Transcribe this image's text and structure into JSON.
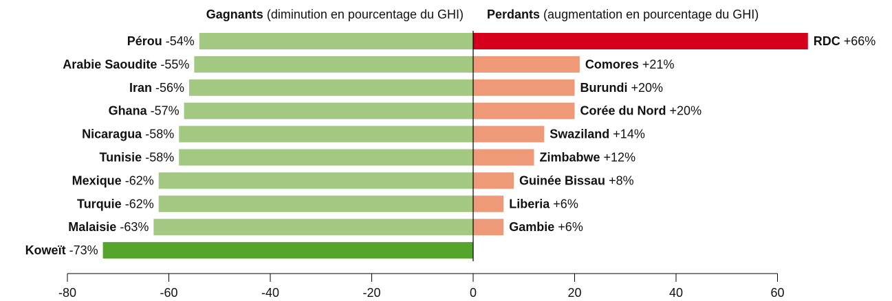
{
  "chart_data": {
    "type": "bar",
    "orientation": "horizontal",
    "xlim": [
      -80,
      60
    ],
    "xticks": [
      -80,
      -60,
      -40,
      -20,
      0,
      20,
      40,
      60
    ],
    "series": [
      {
        "name": "Gagnants",
        "subtitle": "(diminution en pourcentage du GHI)",
        "categories": [
          "Pérou",
          "Arabie Saoudite",
          "Iran",
          "Ghana",
          "Nicaragua",
          "Tunisie",
          "Mexique",
          "Turquie",
          "Malaisie",
          "Koweït"
        ],
        "values": [
          -54,
          -55,
          -56,
          -57,
          -58,
          -58,
          -62,
          -62,
          -63,
          -73
        ],
        "value_labels": [
          "-54%",
          "-55%",
          "-56%",
          "-57%",
          "-58%",
          "-58%",
          "-62%",
          "-62%",
          "-63%",
          "-73%"
        ],
        "colors": [
          "#a3c882",
          "#a3c882",
          "#a3c882",
          "#a3c882",
          "#a3c882",
          "#a3c882",
          "#a3c882",
          "#a3c882",
          "#a3c882",
          "#55a52c"
        ]
      },
      {
        "name": "Perdants",
        "subtitle": "(augmentation en pourcentage du GHI)",
        "categories": [
          "RDC",
          "Comores",
          "Burundi",
          "Corée du Nord",
          "Swaziland",
          "Zimbabwe",
          "Guinée Bissau",
          "Liberia",
          "Gambie"
        ],
        "values": [
          66,
          21,
          20,
          20,
          14,
          12,
          8,
          6,
          6
        ],
        "value_labels": [
          "+66%",
          "+21%",
          "+20%",
          "+20%",
          "+14%",
          "+12%",
          "+8%",
          "+6%",
          "+6%"
        ],
        "colors": [
          "#d6001c",
          "#ee9a79",
          "#ee9a79",
          "#ee9a79",
          "#ee9a79",
          "#ee9a79",
          "#ee9a79",
          "#ee9a79",
          "#ee9a79"
        ]
      }
    ]
  }
}
